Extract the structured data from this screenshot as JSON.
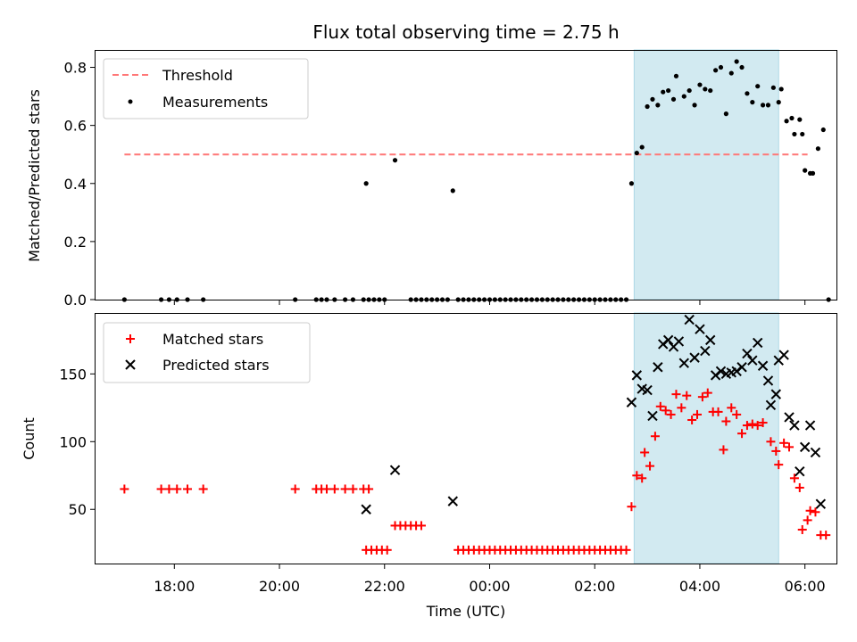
{
  "colors": {
    "threshold": "#ff7777",
    "measurements": "#000000",
    "matched": "#ff0000",
    "predicted": "#000000",
    "shade": "#add8e6"
  },
  "chart_data": [
    {
      "type": "scatter",
      "title": "Flux total observing time = 2.75 h",
      "xlabel": "",
      "ylabel": "Matched/Predicted stars",
      "ylim": [
        0,
        0.86
      ],
      "yticks": [
        "0.0",
        "0.2",
        "0.4",
        "0.6",
        "0.8"
      ],
      "xlim_hours": [
        16.5,
        30.6
      ],
      "shaded_interval_hours": [
        26.75,
        29.5
      ],
      "legend_position": "upper-left",
      "threshold": {
        "name": "Threshold",
        "y": 0.5,
        "x_hours": [
          17.05,
          30.05
        ],
        "style": "dashed"
      },
      "series": [
        {
          "name": "Measurements",
          "marker": "dot",
          "points": [
            [
              17.05,
              0
            ],
            [
              17.75,
              0
            ],
            [
              17.9,
              0
            ],
            [
              18.05,
              0
            ],
            [
              18.25,
              0
            ],
            [
              18.55,
              0
            ],
            [
              20.3,
              0
            ],
            [
              20.7,
              0
            ],
            [
              20.8,
              0
            ],
            [
              20.9,
              0
            ],
            [
              21.05,
              0
            ],
            [
              21.25,
              0
            ],
            [
              21.4,
              0
            ],
            [
              21.6,
              0
            ],
            [
              21.7,
              0
            ],
            [
              21.8,
              0
            ],
            [
              21.9,
              0
            ],
            [
              22.0,
              0
            ],
            [
              21.65,
              0.4
            ],
            [
              22.2,
              0.48
            ],
            [
              23.3,
              0.375
            ],
            [
              22.5,
              0
            ],
            [
              22.6,
              0
            ],
            [
              22.7,
              0
            ],
            [
              22.8,
              0
            ],
            [
              22.9,
              0
            ],
            [
              23.0,
              0
            ],
            [
              23.1,
              0
            ],
            [
              23.2,
              0
            ],
            [
              23.4,
              0
            ],
            [
              23.5,
              0
            ],
            [
              23.6,
              0
            ],
            [
              23.7,
              0
            ],
            [
              23.8,
              0
            ],
            [
              23.9,
              0
            ],
            [
              24.0,
              0
            ],
            [
              24.1,
              0
            ],
            [
              24.2,
              0
            ],
            [
              24.3,
              0
            ],
            [
              24.4,
              0
            ],
            [
              24.5,
              0
            ],
            [
              24.6,
              0
            ],
            [
              24.7,
              0
            ],
            [
              24.8,
              0
            ],
            [
              24.9,
              0
            ],
            [
              25.0,
              0
            ],
            [
              25.1,
              0
            ],
            [
              25.2,
              0
            ],
            [
              25.3,
              0
            ],
            [
              25.4,
              0
            ],
            [
              25.5,
              0
            ],
            [
              25.6,
              0
            ],
            [
              25.7,
              0
            ],
            [
              25.8,
              0
            ],
            [
              25.9,
              0
            ],
            [
              26.0,
              0
            ],
            [
              26.1,
              0
            ],
            [
              26.2,
              0
            ],
            [
              26.3,
              0
            ],
            [
              26.4,
              0
            ],
            [
              26.5,
              0
            ],
            [
              26.6,
              0
            ],
            [
              26.7,
              0.4
            ],
            [
              26.8,
              0.505
            ],
            [
              26.9,
              0.525
            ],
            [
              27.0,
              0.665
            ],
            [
              27.1,
              0.69
            ],
            [
              27.2,
              0.67
            ],
            [
              27.3,
              0.715
            ],
            [
              27.4,
              0.72
            ],
            [
              27.5,
              0.69
            ],
            [
              27.55,
              0.77
            ],
            [
              27.7,
              0.7
            ],
            [
              27.8,
              0.72
            ],
            [
              27.9,
              0.67
            ],
            [
              28.0,
              0.74
            ],
            [
              28.1,
              0.725
            ],
            [
              28.2,
              0.72
            ],
            [
              28.3,
              0.79
            ],
            [
              28.4,
              0.8
            ],
            [
              28.5,
              0.64
            ],
            [
              28.6,
              0.78
            ],
            [
              28.7,
              0.82
            ],
            [
              28.8,
              0.8
            ],
            [
              28.9,
              0.71
            ],
            [
              29.0,
              0.68
            ],
            [
              29.1,
              0.735
            ],
            [
              29.2,
              0.67
            ],
            [
              29.3,
              0.67
            ],
            [
              29.4,
              0.73
            ],
            [
              29.5,
              0.68
            ],
            [
              29.55,
              0.725
            ],
            [
              29.65,
              0.615
            ],
            [
              29.75,
              0.625
            ],
            [
              29.8,
              0.57
            ],
            [
              29.9,
              0.62
            ],
            [
              29.95,
              0.57
            ],
            [
              30.0,
              0.445
            ],
            [
              30.1,
              0.435
            ],
            [
              30.15,
              0.435
            ],
            [
              30.25,
              0.52
            ],
            [
              30.35,
              0.585
            ],
            [
              30.45,
              0
            ]
          ]
        }
      ]
    },
    {
      "type": "scatter",
      "xlabel": "Time (UTC)",
      "ylabel": "Count",
      "ylim": [
        10,
        195
      ],
      "yticks": [
        "50",
        "100",
        "150"
      ],
      "xticks": [
        "18:00",
        "20:00",
        "22:00",
        "00:00",
        "02:00",
        "04:00",
        "06:00"
      ],
      "xlim_hours": [
        16.5,
        30.6
      ],
      "shaded_interval_hours": [
        26.75,
        29.5
      ],
      "legend_position": "upper-left",
      "series": [
        {
          "name": "Matched stars",
          "marker": "plus",
          "points": [
            [
              17.05,
              65
            ],
            [
              17.75,
              65
            ],
            [
              17.9,
              65
            ],
            [
              18.05,
              65
            ],
            [
              18.25,
              65
            ],
            [
              18.55,
              65
            ],
            [
              20.3,
              65
            ],
            [
              20.7,
              65
            ],
            [
              20.8,
              65
            ],
            [
              20.9,
              65
            ],
            [
              21.05,
              65
            ],
            [
              21.25,
              65
            ],
            [
              21.4,
              65
            ],
            [
              21.6,
              65
            ],
            [
              21.7,
              65
            ],
            [
              21.65,
              20
            ],
            [
              21.75,
              20
            ],
            [
              21.85,
              20
            ],
            [
              21.95,
              20
            ],
            [
              22.05,
              20
            ],
            [
              22.2,
              38
            ],
            [
              22.3,
              38
            ],
            [
              22.4,
              38
            ],
            [
              22.5,
              38
            ],
            [
              22.6,
              38
            ],
            [
              22.7,
              38
            ],
            [
              23.4,
              20
            ],
            [
              23.5,
              20
            ],
            [
              23.6,
              20
            ],
            [
              23.7,
              20
            ],
            [
              23.8,
              20
            ],
            [
              23.9,
              20
            ],
            [
              24.0,
              20
            ],
            [
              24.1,
              20
            ],
            [
              24.2,
              20
            ],
            [
              24.3,
              20
            ],
            [
              24.4,
              20
            ],
            [
              24.5,
              20
            ],
            [
              24.6,
              20
            ],
            [
              24.7,
              20
            ],
            [
              24.8,
              20
            ],
            [
              24.9,
              20
            ],
            [
              25.0,
              20
            ],
            [
              25.1,
              20
            ],
            [
              25.2,
              20
            ],
            [
              25.3,
              20
            ],
            [
              25.4,
              20
            ],
            [
              25.5,
              20
            ],
            [
              25.6,
              20
            ],
            [
              25.7,
              20
            ],
            [
              25.8,
              20
            ],
            [
              25.9,
              20
            ],
            [
              26.0,
              20
            ],
            [
              26.1,
              20
            ],
            [
              26.2,
              20
            ],
            [
              26.3,
              20
            ],
            [
              26.4,
              20
            ],
            [
              26.5,
              20
            ],
            [
              26.6,
              20
            ],
            [
              26.7,
              52
            ],
            [
              26.8,
              75
            ],
            [
              26.9,
              73
            ],
            [
              26.95,
              92
            ],
            [
              27.05,
              82
            ],
            [
              27.15,
              104
            ],
            [
              27.25,
              126
            ],
            [
              27.35,
              123
            ],
            [
              27.45,
              120
            ],
            [
              27.55,
              135
            ],
            [
              27.65,
              125
            ],
            [
              27.75,
              134
            ],
            [
              27.85,
              116
            ],
            [
              27.95,
              120
            ],
            [
              28.05,
              133
            ],
            [
              28.15,
              136
            ],
            [
              28.25,
              122
            ],
            [
              28.35,
              122
            ],
            [
              28.45,
              94
            ],
            [
              28.5,
              115
            ],
            [
              28.6,
              125
            ],
            [
              28.7,
              120
            ],
            [
              28.8,
              106
            ],
            [
              28.9,
              112
            ],
            [
              29.0,
              113
            ],
            [
              29.1,
              112
            ],
            [
              29.2,
              114
            ],
            [
              29.35,
              100
            ],
            [
              29.45,
              93
            ],
            [
              29.5,
              83
            ],
            [
              29.6,
              99
            ],
            [
              29.7,
              96
            ],
            [
              29.8,
              73
            ],
            [
              29.9,
              66
            ],
            [
              29.95,
              35
            ],
            [
              30.05,
              42
            ],
            [
              30.1,
              49
            ],
            [
              30.2,
              48
            ],
            [
              30.3,
              31
            ],
            [
              30.4,
              31
            ]
          ]
        },
        {
          "name": "Predicted stars",
          "marker": "x",
          "points": [
            [
              21.65,
              50
            ],
            [
              22.2,
              79
            ],
            [
              23.3,
              56
            ],
            [
              26.7,
              129
            ],
            [
              26.8,
              149
            ],
            [
              26.9,
              139
            ],
            [
              27.0,
              138
            ],
            [
              27.1,
              119
            ],
            [
              27.2,
              155
            ],
            [
              27.3,
              172
            ],
            [
              27.4,
              175
            ],
            [
              27.5,
              170
            ],
            [
              27.6,
              174
            ],
            [
              27.7,
              158
            ],
            [
              27.8,
              190
            ],
            [
              27.9,
              162
            ],
            [
              28.0,
              183
            ],
            [
              28.1,
              167
            ],
            [
              28.2,
              175
            ],
            [
              28.3,
              149
            ],
            [
              28.4,
              152
            ],
            [
              28.5,
              150
            ],
            [
              28.6,
              151
            ],
            [
              28.7,
              152
            ],
            [
              28.8,
              155
            ],
            [
              28.9,
              165
            ],
            [
              29.0,
              160
            ],
            [
              29.1,
              173
            ],
            [
              29.2,
              156
            ],
            [
              29.3,
              145
            ],
            [
              29.35,
              127
            ],
            [
              29.45,
              135
            ],
            [
              29.5,
              160
            ],
            [
              29.6,
              164
            ],
            [
              29.7,
              118
            ],
            [
              29.8,
              112
            ],
            [
              29.9,
              78
            ],
            [
              30.0,
              96
            ],
            [
              30.1,
              112
            ],
            [
              30.2,
              92
            ],
            [
              30.3,
              54
            ]
          ]
        }
      ]
    }
  ]
}
